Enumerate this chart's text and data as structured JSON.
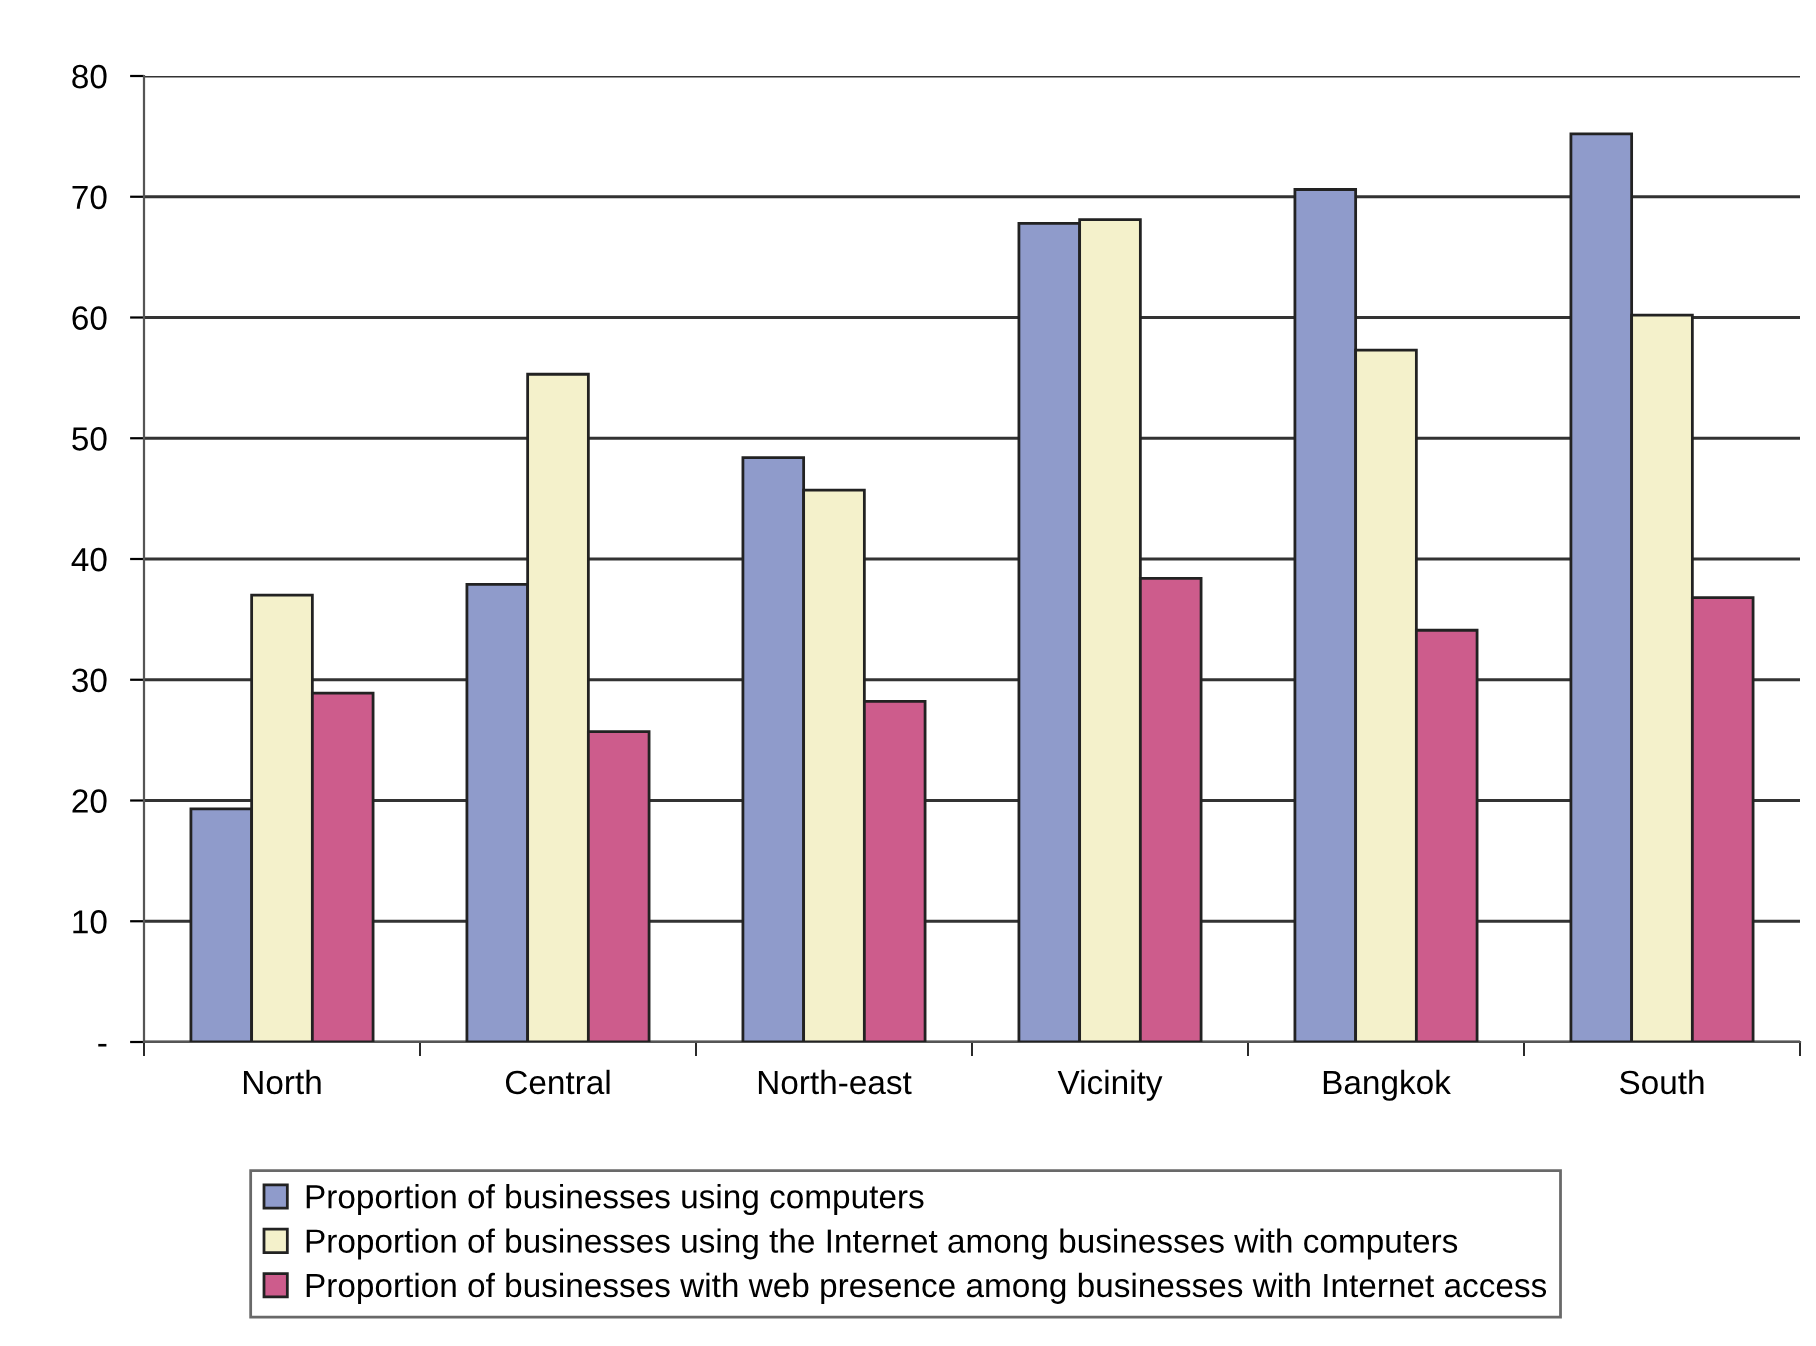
{
  "chart_data": {
    "type": "bar",
    "categories": [
      "North",
      "Central",
      "North-east",
      "Vicinity",
      "Bangkok",
      "South"
    ],
    "series": [
      {
        "name": "Proportion of businesses using computers",
        "color": "#8f9bcb",
        "values": [
          19.3,
          37.9,
          48.4,
          67.8,
          70.6,
          75.2
        ]
      },
      {
        "name": "Proportion of businesses using the Internet among businesses with computers",
        "color": "#f4f1cb",
        "values": [
          37.0,
          55.3,
          45.7,
          68.1,
          57.3,
          60.2
        ]
      },
      {
        "name": "Proportion of businesses with web presence among businesses with Internet access",
        "color": "#cd5c8c",
        "values": [
          28.9,
          25.7,
          28.2,
          38.4,
          34.1,
          36.8
        ]
      }
    ],
    "ylim": [
      0,
      80
    ],
    "yticks": [
      {
        "value": 0,
        "label": "-"
      },
      10,
      20,
      30,
      40,
      50,
      60,
      70,
      80
    ],
    "grid": "y",
    "legend": "bottom"
  }
}
